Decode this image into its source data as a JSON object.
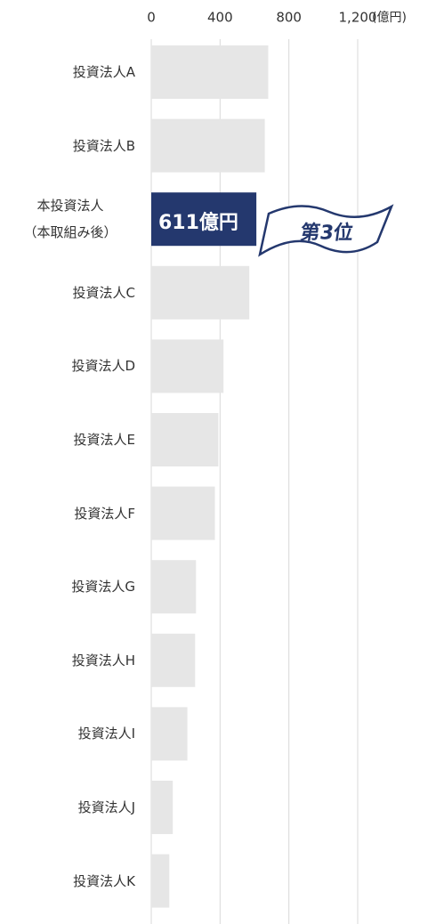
{
  "chart_data": {
    "type": "barh",
    "categories": [
      "投資法人A",
      "投資法人B",
      "本投資法人\n（本取組み後）",
      "投資法人C",
      "投資法人D",
      "投資法人E",
      "投資法人F",
      "投資法人G",
      "投資法人H",
      "投資法人I",
      "投資法人J",
      "投資法人K"
    ],
    "values": [
      680,
      660,
      611,
      570,
      420,
      390,
      370,
      260,
      255,
      210,
      125,
      105
    ],
    "value_labels": [
      null,
      null,
      "611億円",
      null,
      null,
      null,
      null,
      null,
      null,
      null,
      null,
      null
    ],
    "color": "#e6e6e6",
    "highlight_color": "#24386e",
    "highlight_index": 2,
    "xlim": [
      0,
      1200
    ],
    "xticks": [
      0,
      400,
      800,
      {
        "value": 1200,
        "label": "1,200"
      }
    ],
    "unit_label": "(億円)",
    "grid": true,
    "annotation": "第3位"
  }
}
